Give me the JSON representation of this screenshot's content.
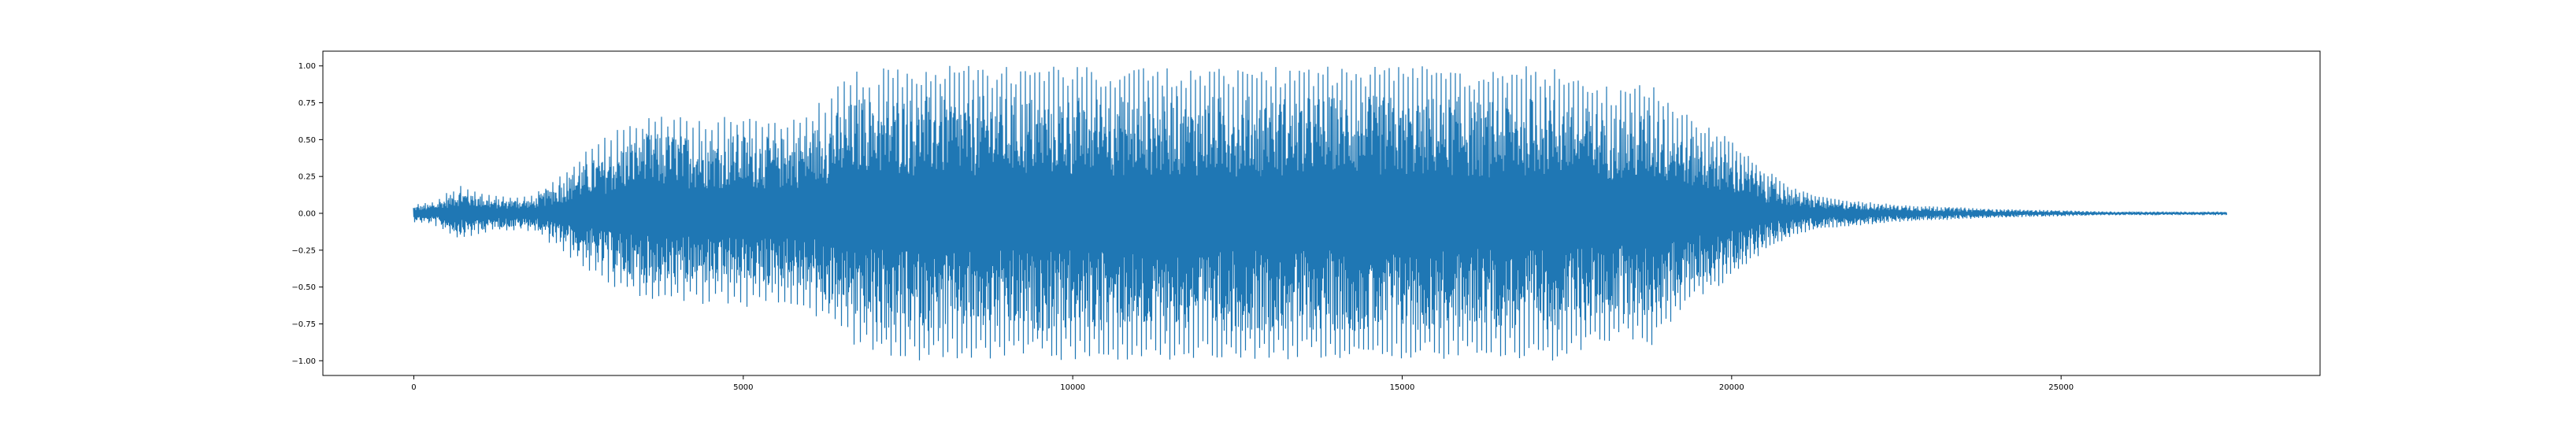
{
  "chart_data": {
    "type": "line",
    "title": "",
    "xlabel": "",
    "ylabel": "",
    "xlim": [
      -1380,
      28930
    ],
    "ylim": [
      -1.1,
      1.1
    ],
    "xticks": [
      0,
      5000,
      10000,
      15000,
      20000,
      25000
    ],
    "xtick_labels": [
      "0",
      "5000",
      "10000",
      "15000",
      "20000",
      "25000"
    ],
    "yticks": [
      1.0,
      0.75,
      0.5,
      0.25,
      0.0,
      -0.25,
      -0.5,
      -0.75,
      -1.0
    ],
    "ytick_labels": [
      "1.00",
      "0.75",
      "0.50",
      "0.25",
      "0.00",
      "−0.25",
      "−0.50",
      "−0.75",
      "−1.00"
    ],
    "grid": false,
    "legend": "none",
    "series": [
      {
        "color": "#1f77b4",
        "n_samples": 27500,
        "envelope": {
          "x": [
            0,
            300,
            700,
            1200,
            1800,
            2300,
            2600,
            3000,
            3500,
            4000,
            4500,
            5000,
            5500,
            6000,
            6500,
            6800,
            7200,
            8000,
            9000,
            10000,
            11000,
            12000,
            13000,
            14000,
            15000,
            15800,
            16200,
            16800,
            17300,
            17800,
            18300,
            18800,
            19300,
            20000,
            20500,
            21000,
            21500,
            22500,
            24000,
            25000,
            26000,
            27500
          ],
          "upper": [
            0.06,
            0.08,
            0.2,
            0.12,
            0.12,
            0.3,
            0.42,
            0.55,
            0.68,
            0.68,
            0.66,
            0.68,
            0.64,
            0.7,
            0.9,
            1.0,
            1.0,
            1.0,
            1.0,
            1.0,
            1.0,
            1.0,
            1.0,
            1.0,
            1.0,
            1.0,
            0.95,
            1.0,
            1.0,
            0.9,
            0.85,
            0.9,
            0.68,
            0.5,
            0.3,
            0.16,
            0.1,
            0.06,
            0.03,
            0.02,
            0.01,
            0.01
          ],
          "lower": [
            -0.06,
            -0.08,
            -0.18,
            -0.12,
            -0.12,
            -0.28,
            -0.38,
            -0.5,
            -0.6,
            -0.62,
            -0.62,
            -0.64,
            -0.62,
            -0.68,
            -0.85,
            -0.95,
            -1.0,
            -1.0,
            -1.0,
            -1.0,
            -1.0,
            -1.0,
            -1.0,
            -1.0,
            -1.0,
            -1.0,
            -0.95,
            -1.0,
            -1.0,
            -0.92,
            -0.85,
            -0.9,
            -0.62,
            -0.45,
            -0.25,
            -0.14,
            -0.1,
            -0.06,
            -0.03,
            -0.02,
            -0.01,
            -0.01
          ]
        }
      }
    ]
  }
}
